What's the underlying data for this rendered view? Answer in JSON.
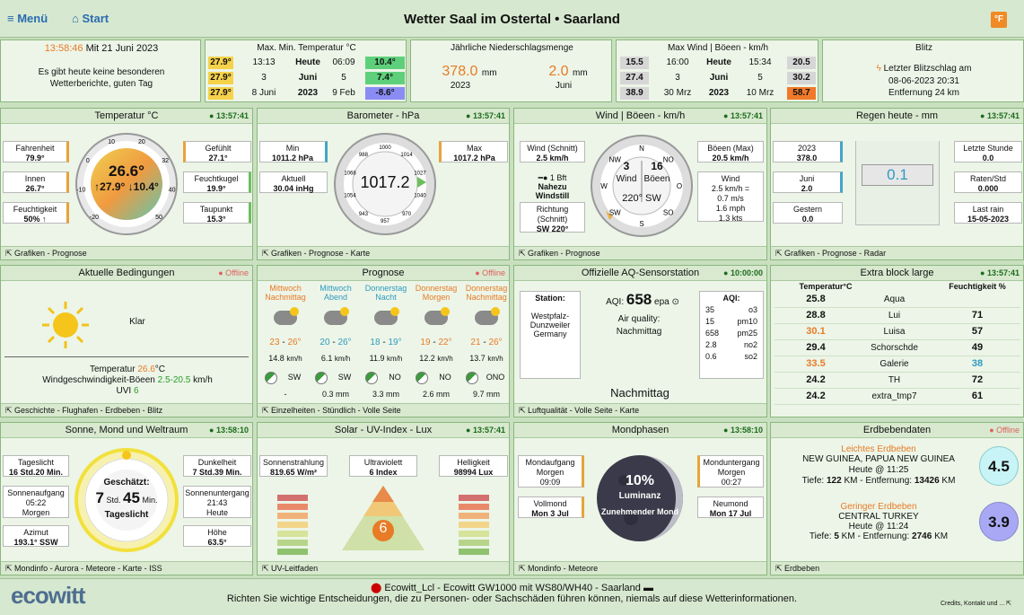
{
  "header": {
    "menu": "Menü",
    "start": "Start",
    "title": "Wetter Saal im Ostertal  •  Saarland",
    "unit_button": "°F"
  },
  "info": {
    "time": "13:58:46",
    "date": "Mit 21 Juni 2023",
    "msg1": "Es gibt heute keine besonderen",
    "msg2": "Wetterberichte, guten Tag"
  },
  "maxmin": {
    "title": "Max. Min. Temperatur °C",
    "rows": [
      {
        "max": "27.9°",
        "t1": "13:13",
        "label": "Heute",
        "t2": "06:09",
        "min": "10.4°"
      },
      {
        "max": "27.9°",
        "t1": "3",
        "label": "Juni",
        "t2": "5",
        "min": "7.4°"
      },
      {
        "max": "27.9°",
        "t1": "8 Juni",
        "label": "2023",
        "t2": "9 Feb",
        "min": "-8.6°"
      }
    ]
  },
  "rainyear": {
    "title": "Jährliche Niederschlagsmenge",
    "v1": "378.0",
    "u1": "mm",
    "l1": "2023",
    "v2": "2.0",
    "u2": "mm",
    "l2": "Juni"
  },
  "maxwind": {
    "title": "Max Wind | Böeen - km/h",
    "rows": [
      {
        "a": "15.5",
        "t1": "16:00",
        "label": "Heute",
        "t2": "15:34",
        "b": "20.5"
      },
      {
        "a": "27.4",
        "t1": "3",
        "label": "Juni",
        "t2": "5",
        "b": "30.2"
      },
      {
        "a": "38.9",
        "t1": "30 Mrz",
        "label": "2023",
        "t2": "10 Mrz",
        "b": "58.7"
      }
    ]
  },
  "blitz": {
    "title": "Blitz",
    "l1": "Letzter Blitzschlag am",
    "l2": "08-06-2023 20:31",
    "l3": "Entfernung 24 km"
  },
  "temp": {
    "title": "Temperatur °C",
    "time": "13:57:41",
    "fahr_l": "Fahrenheit",
    "fahr_v": "79.9°",
    "innen_l": "Innen",
    "innen_v": "26.7°",
    "feucht_l": "Feuchtigkeit",
    "feucht_v": "50% ↑",
    "gef_l": "Gefühlt",
    "gef_v": "27.1°",
    "fk_l": "Feuchtkugel",
    "fk_v": "19.9°",
    "tau_l": "Taupunkt",
    "tau_v": "15.3°",
    "cur": "26.6°",
    "hi": "↑27.9°",
    "lo": "↓10.4°",
    "foot": "Grafiken - Prognose",
    "ticks": [
      "-20",
      "-10",
      "0",
      "10",
      "20",
      "32",
      "40",
      "50"
    ]
  },
  "baro": {
    "title": "Barometer - hPa",
    "time": "13:57:41",
    "min_l": "Min",
    "min_v": "1011.2 hPa",
    "akt_l": "Aktuell",
    "akt_v": "30.04 inHg",
    "max_l": "Max",
    "max_v": "1017.2 hPa",
    "cur": "1017.2",
    "foot": "Grafiken - Prognose - Karte",
    "ticks": [
      "1000",
      "1014",
      "1027",
      "1040",
      "970",
      "957",
      "943",
      "1054",
      "1068",
      "988"
    ]
  },
  "wind": {
    "title": "Wind | Böeen - km/h",
    "time": "13:57:41",
    "sch_l": "Wind (Schnitt)",
    "sch_v": "2.5 km/h",
    "bft": "1 Bft",
    "desc1": "Nahezu",
    "desc2": "Windstill",
    "ri_l1": "Richtung",
    "ri_l2": "(Schnitt)",
    "ri_v": "SW 220°",
    "wind_v": "3",
    "wind_l": "Wind",
    "boe_v": "16",
    "boe_l": "Böeen",
    "dir": "220° SW",
    "bmax_l": "Böeen (Max)",
    "bmax_v": "20.5 km/h",
    "wl": "Wind",
    "w1": "2.5 km/h =",
    "w2": "0.7 m/s",
    "w3": "1.6 mph",
    "w4": "1.3 kts",
    "foot": "Grafiken - Prognose",
    "compass": [
      "N",
      "NO",
      "O",
      "SO",
      "S",
      "SW",
      "W",
      "NW"
    ]
  },
  "rain": {
    "title": "Regen heute - mm",
    "time": "13:57:41",
    "y_l": "2023",
    "y_v": "378.0",
    "j_l": "Juni",
    "j_v": "2.0",
    "g_l": "Gestern",
    "g_v": "0.0",
    "cur": "0.1",
    "ls_l": "Letzte Stunde",
    "ls_v": "0.0",
    "rs_l": "Raten/Std",
    "rs_v": "0.000",
    "lr_l": "Last rain",
    "lr_v": "15-05-2023",
    "foot": "Grafiken - Prognose - Radar"
  },
  "cond": {
    "title": "Aktuelle Bedingungen",
    "status": "● Offline",
    "sky": "Klar",
    "temp_l": "Temperatur",
    "temp_v": "26.6",
    "temp_u": "°C",
    "wind_l": "Windgeschwindigkeit-Böeen",
    "wind_v": "2.5-20.5",
    "wind_u": "km/h",
    "uvi_l": "UVI",
    "uvi_v": "6",
    "foot": "Geschichte - Flughafen - Erdbeben - Blitz"
  },
  "prog": {
    "title": "Prognose",
    "status": "● Offline",
    "foot": "Einzelheiten - Stündlich - Volle Seite",
    "days": [
      {
        "d1": "Mittwoch",
        "d2": "Nachmittag",
        "c": "#e87b26",
        "lo": "23",
        "hi": "26°",
        "w": "14.8",
        "dir": "SW",
        "r": "-"
      },
      {
        "d1": "Mittwoch",
        "d2": "Abend",
        "c": "#2f9bc1",
        "lo": "20",
        "hi": "26°",
        "w": "6.1",
        "dir": "SW",
        "r": "0.3 mm"
      },
      {
        "d1": "Donnerstag",
        "d2": "Nacht",
        "c": "#2f9bc1",
        "lo": "18",
        "hi": "19°",
        "w": "11.9",
        "dir": "NO",
        "r": "3.3 mm"
      },
      {
        "d1": "Donnerstag",
        "d2": "Morgen",
        "c": "#e87b26",
        "lo": "19",
        "hi": "22°",
        "w": "12.2",
        "dir": "NO",
        "r": "2.6 mm"
      },
      {
        "d1": "Donnerstag",
        "d2": "Nachmittag",
        "c": "#e87b26",
        "lo": "21",
        "hi": "26°",
        "w": "13.7",
        "dir": "ONO",
        "r": "9.7 mm"
      }
    ],
    "wu": "km/h"
  },
  "aq": {
    "title": "Offizielle AQ-Sensorstation",
    "time": "10:00:00",
    "st_l": "Station:",
    "st1": "Westpfalz-",
    "st2": "Dunzweiler",
    "st3": "Germany",
    "aqi_l": "AQI:",
    "aqi_v": "658",
    "aqi_u": "epa",
    "qual_l": "Air quality:",
    "qual_v": "Nachmittag",
    "big": "Nachmittag",
    "tab_l": "AQI:",
    "tab": [
      [
        "35",
        "o3"
      ],
      [
        "15",
        "pm10"
      ],
      [
        "658",
        "pm25"
      ],
      [
        "2.8",
        "no2"
      ],
      [
        "0.6",
        "so2"
      ]
    ],
    "foot": "Luftqualität - Volle Seite - Karte"
  },
  "extra": {
    "title": "Extra block large",
    "time": "13:57:41",
    "h1": "Temperatur°C",
    "h2": "Feuchtigkeit %",
    "rows": [
      {
        "t": "25.8",
        "n": "Aqua",
        "h": "",
        "tc": "#111",
        "hc": "#111"
      },
      {
        "t": "28.8",
        "n": "Lui",
        "h": "71",
        "tc": "#111",
        "hc": "#111"
      },
      {
        "t": "30.1",
        "n": "Luisa",
        "h": "57",
        "tc": "#e87b26",
        "hc": "#111"
      },
      {
        "t": "29.4",
        "n": "Schorschde",
        "h": "49",
        "tc": "#111",
        "hc": "#111"
      },
      {
        "t": "33.5",
        "n": "Galerie",
        "h": "38",
        "tc": "#e87b26",
        "hc": "#2f9bc1"
      },
      {
        "t": "24.2",
        "n": "TH",
        "h": "72",
        "tc": "#111",
        "hc": "#111"
      },
      {
        "t": "24.2",
        "n": "extra_tmp7",
        "h": "61",
        "tc": "#111",
        "hc": "#111"
      }
    ]
  },
  "sun": {
    "title": "Sonne, Mond und Weltraum",
    "time": "13:58:10",
    "tl_l": "Tageslicht",
    "tl_v": "16 Std.20 Min.",
    "sa_l": "Sonnenaufgang",
    "sa_v": "05:22",
    "sa_s": "Morgen",
    "az_l": "Azimut",
    "az_v": "193.1° SSW",
    "dl_l": "Dunkelheit",
    "dl_v": "7 Std.39 Min.",
    "su_l": "Sonnenuntergang",
    "su_v": "21:43",
    "su_s": "Heute",
    "ho_l": "Höhe",
    "ho_v": "63.5°",
    "g_l": "Geschätzt:",
    "g_h": "7",
    "g_hu": "Std.",
    "g_m": "45",
    "g_mu": "Min.",
    "g_s": "Tageslicht",
    "foot": "Mondinfo - Aurora - Meteore - Karte - ISS"
  },
  "solar": {
    "title": "Solar - UV-Index - Lux",
    "time": "13:57:41",
    "ss_l": "Sonnenstrahlung",
    "ss_v": "819.65 W/m²",
    "uv_l": "Ultraviolett",
    "uv_v": "6 Index",
    "he_l": "Helligkeit",
    "he_v": "98994 Lux",
    "uv_num": "6",
    "foot": "UV-Leitfaden"
  },
  "moon": {
    "title": "Mondphasen",
    "time": "13:58:10",
    "ma_l": "Mondaufgang",
    "ma_s": "Morgen",
    "ma_v": "09:09",
    "vm_l": "Vollmond",
    "vm_v": "Mon 3 Jul",
    "mu_l": "Monduntergang",
    "mu_s": "Morgen",
    "mu_v": "00:27",
    "nm_l": "Neumond",
    "nm_v": "Mon 17 Jul",
    "pct": "10%",
    "lum": "Luminanz",
    "phase": "Zunehmender Mond",
    "foot": "Mondinfo - Meteore"
  },
  "quake": {
    "title": "Erdbebendaten",
    "status": "● Offline",
    "q1_t": "Leichtes Erdbeben",
    "q1_p": "NEW GUINEA, PAPUA NEW GUINEA",
    "q1_h": "Heute @ 11:25",
    "q1_d1": "Tiefe:",
    "q1_d2": "122",
    "q1_d3": "KM - Entfernung:",
    "q1_d4": "13426",
    "q1_d5": "KM",
    "q1_m": "4.5",
    "q2_t": "Geringer Erdbeben",
    "q2_p": "CENTRAL TURKEY",
    "q2_h": "Heute @ 11:24",
    "q2_d1": "Tiefe:",
    "q2_d2": "5",
    "q2_d3": "KM - Entfernung:",
    "q2_d4": "2746",
    "q2_d5": "KM",
    "q2_m": "3.9",
    "foot": "Erdbeben"
  },
  "footer": {
    "logo": "ecowitt",
    "l1": "Ecowitt_Lcl  -  Ecowitt GW1000 mit WS80/WH40  -  Saarland",
    "l2": "Richten Sie wichtige Entscheidungen, die zu Personen- oder Sachschäden führen können, niemals auf diese Wetterinformationen.",
    "credits": "Credits, Kontakt und ..."
  }
}
